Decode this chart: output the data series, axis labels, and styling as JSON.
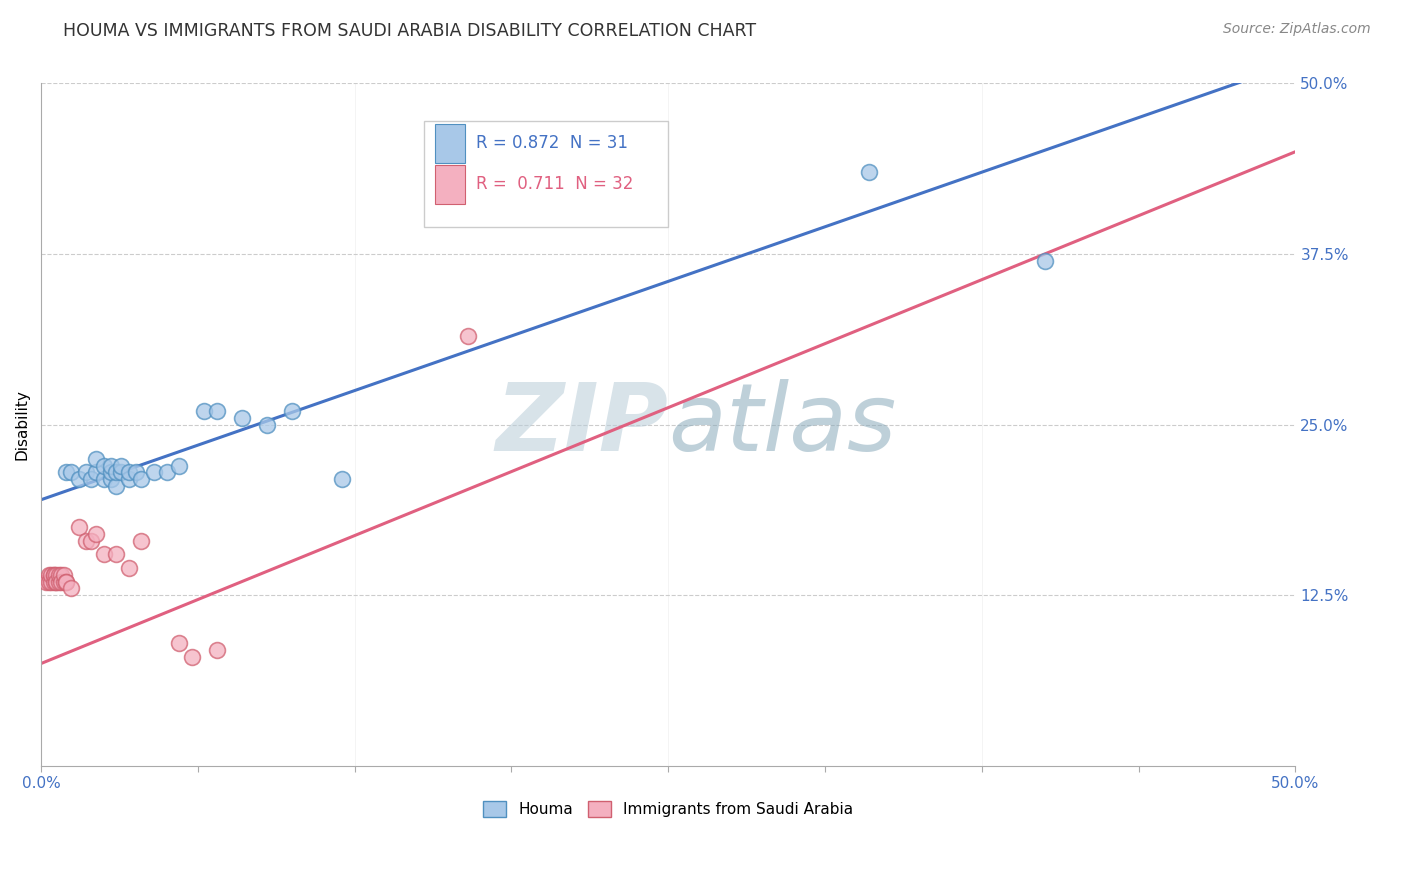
{
  "title": "HOUMA VS IMMIGRANTS FROM SAUDI ARABIA DISABILITY CORRELATION CHART",
  "source_text": "Source: ZipAtlas.com",
  "ylabel": "Disability",
  "xlim": [
    0,
    0.5
  ],
  "ylim": [
    0,
    0.5
  ],
  "xticks": [
    0.0,
    0.0625,
    0.125,
    0.1875,
    0.25,
    0.3125,
    0.375,
    0.4375,
    0.5
  ],
  "yticks": [
    0.0,
    0.125,
    0.25,
    0.375,
    0.5
  ],
  "houma_color": "#a8c8e8",
  "immigrant_color": "#f4b0c0",
  "houma_edge": "#5090c0",
  "immigrant_edge": "#d06070",
  "blue_line_color": "#4472c4",
  "pink_line_color": "#e06080",
  "legend_R_houma": "0.872",
  "legend_N_houma": "31",
  "legend_R_immigrant": "0.711",
  "legend_N_immigrant": "32",
  "watermark_zip": "ZIP",
  "watermark_atlas": "atlas",
  "watermark_color_zip": "#ccdde8",
  "watermark_color_atlas": "#aabbcc",
  "background_color": "#ffffff",
  "grid_color": "#cccccc",
  "title_color": "#333333",
  "source_color": "#888888",
  "tick_color": "#4472c4",
  "houma_x": [
    0.01,
    0.012,
    0.015,
    0.018,
    0.02,
    0.022,
    0.022,
    0.025,
    0.025,
    0.028,
    0.028,
    0.028,
    0.03,
    0.03,
    0.032,
    0.032,
    0.035,
    0.035,
    0.038,
    0.04,
    0.045,
    0.05,
    0.055,
    0.065,
    0.07,
    0.08,
    0.09,
    0.1,
    0.12,
    0.33,
    0.4
  ],
  "houma_y": [
    0.215,
    0.215,
    0.21,
    0.215,
    0.21,
    0.215,
    0.225,
    0.21,
    0.22,
    0.21,
    0.215,
    0.22,
    0.205,
    0.215,
    0.215,
    0.22,
    0.21,
    0.215,
    0.215,
    0.21,
    0.215,
    0.215,
    0.22,
    0.26,
    0.26,
    0.255,
    0.25,
    0.26,
    0.21,
    0.435,
    0.37
  ],
  "immigrant_x": [
    0.002,
    0.003,
    0.003,
    0.004,
    0.004,
    0.005,
    0.005,
    0.005,
    0.006,
    0.006,
    0.006,
    0.007,
    0.007,
    0.008,
    0.008,
    0.009,
    0.009,
    0.01,
    0.01,
    0.012,
    0.015,
    0.018,
    0.02,
    0.022,
    0.025,
    0.03,
    0.035,
    0.04,
    0.055,
    0.06,
    0.07,
    0.17
  ],
  "immigrant_y": [
    0.135,
    0.14,
    0.135,
    0.135,
    0.14,
    0.14,
    0.135,
    0.14,
    0.135,
    0.14,
    0.135,
    0.135,
    0.14,
    0.14,
    0.135,
    0.135,
    0.14,
    0.135,
    0.135,
    0.13,
    0.175,
    0.165,
    0.165,
    0.17,
    0.155,
    0.155,
    0.145,
    0.165,
    0.09,
    0.08,
    0.085,
    0.315
  ]
}
